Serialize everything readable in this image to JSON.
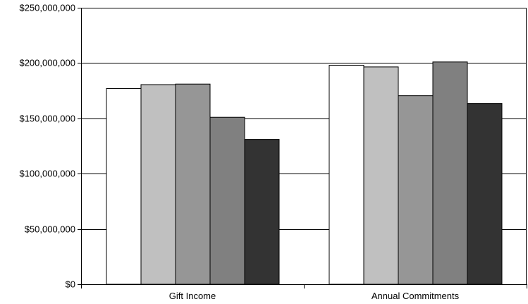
{
  "chart_data": {
    "type": "bar",
    "categories": [
      "Gift Income",
      "Annual Commitments"
    ],
    "series": [
      {
        "values": [
          177000000,
          198000000
        ],
        "color": "#ffffff"
      },
      {
        "values": [
          180500000,
          196500000
        ],
        "color": "#c0c0c0"
      },
      {
        "values": [
          181000000,
          170500000
        ],
        "color": "#969696"
      },
      {
        "values": [
          151000000,
          201000000
        ],
        "color": "#808080"
      },
      {
        "values": [
          131000000,
          163500000
        ],
        "color": "#333333"
      }
    ],
    "y_ticks": [
      "$0",
      "$50,000,000",
      "$100,000,000",
      "$150,000,000",
      "$200,000,000",
      "$250,000,000"
    ],
    "ylim": [
      0,
      250000000
    ],
    "grid": true,
    "legend": "none"
  }
}
